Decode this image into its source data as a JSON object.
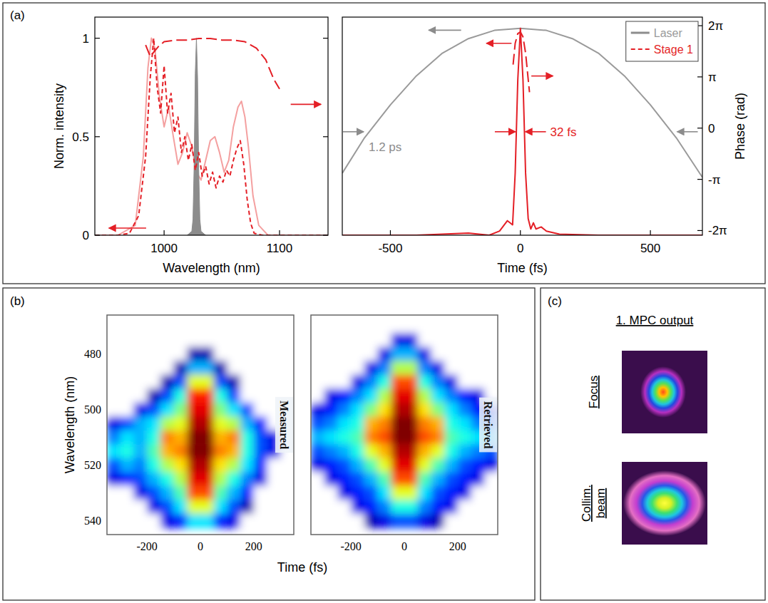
{
  "chart_data": [
    {
      "type": "line",
      "xlabel": "Wavelength (nm)",
      "ylabel": "Norm. intensity",
      "xlim": [
        940,
        1142
      ],
      "ylim": [
        0,
        1.107
      ],
      "y2lim": [
        -6.57,
        6.81
      ],
      "xticks": [
        1000,
        1100
      ],
      "yticks": [
        0,
        0.5,
        1
      ],
      "legend": "upper right",
      "series": [
        {
          "color": "#f4a0a0",
          "line_style": "solid",
          "x": [
            940,
            960,
            975,
            982,
            986,
            989,
            992,
            996,
            1000,
            1004,
            1008,
            1012,
            1016,
            1020,
            1024,
            1028,
            1032,
            1036,
            1040,
            1044,
            1048,
            1052,
            1056,
            1060,
            1064,
            1067,
            1070,
            1073,
            1077,
            1082,
            1090,
            1142
          ],
          "values": [
            0,
            0,
            0.05,
            0.4,
            0.85,
            1,
            0.95,
            0.7,
            0.55,
            0.65,
            0.5,
            0.36,
            0.42,
            0.52,
            0.45,
            0.32,
            0.28,
            0.38,
            0.48,
            0.5,
            0.42,
            0.32,
            0.38,
            0.55,
            0.65,
            0.68,
            0.6,
            0.45,
            0.2,
            0.05,
            0,
            0
          ]
        },
        {
          "name": "Laser",
          "color": "#8c8c8c",
          "type": "area",
          "x": [
            1020,
            1024,
            1025,
            1026,
            1027,
            1028,
            1029,
            1030,
            1031,
            1032,
            1036
          ],
          "values": [
            0,
            0.02,
            0.08,
            0.35,
            0.82,
            1,
            0.8,
            0.33,
            0.08,
            0.02,
            0
          ]
        },
        {
          "name": "Stage 1",
          "color": "#e41f26",
          "line_style": "dashed",
          "x": [
            940,
            960,
            970,
            978,
            984,
            988,
            991,
            994,
            997,
            1000,
            1003,
            1006,
            1009,
            1012,
            1015,
            1018,
            1021,
            1024,
            1027,
            1030,
            1033,
            1036,
            1039,
            1042,
            1045,
            1048,
            1051,
            1054,
            1057,
            1060,
            1063,
            1066,
            1069,
            1072,
            1075,
            1078,
            1085,
            1142
          ],
          "values": [
            0,
            0,
            0.01,
            0.1,
            0.4,
            0.8,
            1,
            0.75,
            0.62,
            0.86,
            0.62,
            0.72,
            0.52,
            0.6,
            0.42,
            0.5,
            0.38,
            0.46,
            0.33,
            0.42,
            0.3,
            0.35,
            0.26,
            0.32,
            0.24,
            0.3,
            0.27,
            0.33,
            0.3,
            0.38,
            0.44,
            0.48,
            0.36,
            0.18,
            0.06,
            0.01,
            0,
            0
          ]
        },
        {
          "color": "#e41f26",
          "line_style": "long-dashed",
          "axis": "y2",
          "x": [
            984,
            988,
            995,
            1000,
            1010,
            1020,
            1030,
            1040,
            1050,
            1060,
            1070,
            1080,
            1088,
            1095,
            1100
          ],
          "values": [
            5.1,
            4.4,
            5.0,
            5.3,
            5.4,
            5.4,
            5.5,
            5.5,
            5.4,
            5.4,
            5.3,
            4.9,
            4.2,
            3.0,
            2.4
          ]
        }
      ]
    },
    {
      "type": "line",
      "xlabel": "Time (fs)",
      "y2label": "Phase (rad)",
      "xlim": [
        -685,
        700
      ],
      "ylim": [
        0,
        1.054
      ],
      "y2lim": [
        -6.57,
        6.81
      ],
      "xticks": [
        -500,
        0,
        500
      ],
      "yticks": [],
      "y2ticks": [
        {
          "value": 6.283,
          "label": "2π"
        },
        {
          "value": 3.142,
          "label": "π"
        },
        0,
        {
          "value": -3.142,
          "label": "-π"
        },
        {
          "value": -6.283,
          "label": "-2π"
        }
      ],
      "series": [
        {
          "color": "#9a9a9a",
          "line_style": "solid",
          "x": [
            -685,
            -600,
            -500,
            -400,
            -300,
            -200,
            -100,
            0,
            100,
            200,
            300,
            400,
            500,
            600,
            700
          ],
          "values": [
            0.3,
            0.47,
            0.63,
            0.77,
            0.88,
            0.95,
            0.99,
            1,
            0.99,
            0.95,
            0.88,
            0.77,
            0.63,
            0.47,
            0.28
          ]
        },
        {
          "color": "#e41f26",
          "line_style": "solid",
          "x": [
            -685,
            -400,
            -300,
            -200,
            -120,
            -80,
            -50,
            -40,
            -30,
            -20,
            -10,
            0,
            10,
            20,
            30,
            40,
            50,
            60,
            80,
            100,
            150,
            300,
            500,
            700
          ],
          "values": [
            0,
            0,
            0.005,
            0.01,
            0,
            0.02,
            0.07,
            0.06,
            0.05,
            0.3,
            0.75,
            1,
            0.75,
            0.3,
            0.08,
            0.03,
            0.06,
            0.03,
            0.04,
            0.02,
            0.005,
            0,
            0,
            0
          ]
        },
        {
          "color": "#e41f26",
          "line_style": "long-dashed",
          "axis": "y2",
          "x": [
            -28,
            -20,
            -10,
            0,
            10,
            20,
            30,
            35
          ],
          "values": [
            3.9,
            5.2,
            5.8,
            5.9,
            5.6,
            4.6,
            3.0,
            2.2
          ]
        }
      ],
      "annotations": [
        {
          "text": "1.2 ps",
          "x": [
            -600,
            600
          ],
          "y": 0.5,
          "color": "#8c8c8c"
        },
        {
          "text": "32 fs",
          "x": [
            -16,
            16
          ],
          "y": 0.5,
          "color": "#e41f26"
        }
      ]
    },
    {
      "type": "heatmap",
      "title": "Measured",
      "xlabel": "Time (fs)",
      "ylabel": "Wavelength (nm)",
      "xlim": [
        -350,
        350
      ],
      "ylim": [
        466,
        545
      ],
      "xticks": [
        -200,
        0,
        200
      ],
      "yticks": [
        480,
        500,
        520,
        540
      ],
      "x": [
        -325,
        -275,
        -225,
        -175,
        -125,
        -75,
        -25,
        25,
        75,
        125,
        175,
        225,
        275,
        325
      ],
      "y": [
        470,
        475,
        480,
        485,
        490,
        495,
        500,
        505,
        510,
        515,
        520,
        525,
        530,
        535,
        540
      ],
      "cells": [
        [
          0,
          0,
          0,
          0,
          0,
          0,
          0,
          0,
          0,
          0,
          0,
          0,
          0,
          0
        ],
        [
          0,
          0,
          0,
          0,
          0,
          0,
          0,
          0,
          0,
          0,
          0,
          0,
          0,
          0
        ],
        [
          0,
          0,
          0,
          0,
          0,
          0,
          0.05,
          0.05,
          0,
          0,
          0,
          0,
          0,
          0
        ],
        [
          0,
          0,
          0,
          0,
          0,
          0.05,
          0.3,
          0.3,
          0.05,
          0,
          0,
          0,
          0,
          0
        ],
        [
          0,
          0,
          0,
          0,
          0.05,
          0.2,
          0.6,
          0.6,
          0.2,
          0.05,
          0,
          0,
          0,
          0
        ],
        [
          0,
          0,
          0,
          0.05,
          0.2,
          0.4,
          0.85,
          0.85,
          0.4,
          0.2,
          0,
          0,
          0,
          0
        ],
        [
          0,
          0,
          0.1,
          0.2,
          0.35,
          0.5,
          0.9,
          0.9,
          0.5,
          0.35,
          0.2,
          0,
          0,
          0
        ],
        [
          0.1,
          0.2,
          0.3,
          0.35,
          0.55,
          0.6,
          0.95,
          0.95,
          0.6,
          0.55,
          0.3,
          0.15,
          0,
          0
        ],
        [
          0.25,
          0.35,
          0.3,
          0.4,
          0.75,
          0.7,
          1,
          1,
          0.7,
          0.75,
          0.4,
          0.2,
          0.1,
          0
        ],
        [
          0.35,
          0.4,
          0.3,
          0.45,
          0.7,
          0.75,
          1,
          1,
          0.75,
          0.7,
          0.4,
          0.2,
          0.1,
          0
        ],
        [
          0.2,
          0.3,
          0.25,
          0.4,
          0.55,
          0.65,
          0.95,
          0.95,
          0.65,
          0.55,
          0.35,
          0.15,
          0,
          0
        ],
        [
          0.1,
          0.15,
          0.2,
          0.3,
          0.4,
          0.55,
          0.9,
          0.9,
          0.55,
          0.4,
          0.25,
          0.1,
          0,
          0
        ],
        [
          0,
          0,
          0.1,
          0.2,
          0.3,
          0.45,
          0.8,
          0.8,
          0.45,
          0.3,
          0.15,
          0,
          0,
          0
        ],
        [
          0,
          0,
          0,
          0.1,
          0.2,
          0.35,
          0.6,
          0.6,
          0.35,
          0.2,
          0.05,
          0,
          0,
          0
        ],
        [
          0,
          0,
          0,
          0,
          0.1,
          0.15,
          0.35,
          0.35,
          0.15,
          0.1,
          0,
          0,
          0,
          0
        ]
      ]
    },
    {
      "type": "heatmap",
      "title": "Retrieved",
      "tick_labels": "x",
      "xlim": [
        -350,
        350
      ],
      "ylim": [
        466,
        545
      ],
      "xticks": [
        -200,
        0,
        200
      ],
      "yticks": [
        480,
        500,
        520,
        540
      ],
      "x": [
        -325,
        -275,
        -225,
        -175,
        -125,
        -75,
        -25,
        25,
        75,
        125,
        175,
        225,
        275,
        325
      ],
      "y": [
        470,
        475,
        480,
        485,
        490,
        495,
        500,
        505,
        510,
        515,
        520,
        525,
        530,
        535,
        540
      ],
      "cells": [
        [
          0,
          0,
          0,
          0,
          0,
          0,
          0,
          0,
          0,
          0,
          0,
          0,
          0,
          0
        ],
        [
          0,
          0,
          0,
          0,
          0,
          0,
          0.1,
          0.1,
          0,
          0,
          0,
          0,
          0,
          0
        ],
        [
          0,
          0,
          0,
          0,
          0,
          0.1,
          0.3,
          0.3,
          0.1,
          0,
          0,
          0,
          0,
          0
        ],
        [
          0,
          0,
          0,
          0,
          0.1,
          0.25,
          0.55,
          0.55,
          0.25,
          0.1,
          0,
          0,
          0,
          0
        ],
        [
          0,
          0,
          0,
          0.1,
          0.25,
          0.4,
          0.8,
          0.8,
          0.4,
          0.25,
          0.1,
          0,
          0,
          0
        ],
        [
          0,
          0.1,
          0.15,
          0.25,
          0.35,
          0.55,
          0.9,
          0.9,
          0.55,
          0.35,
          0.25,
          0.15,
          0.1,
          0
        ],
        [
          0.1,
          0.15,
          0.25,
          0.35,
          0.5,
          0.65,
          0.95,
          0.95,
          0.65,
          0.5,
          0.35,
          0.25,
          0.15,
          0.1
        ],
        [
          0.2,
          0.25,
          0.35,
          0.4,
          0.7,
          0.75,
          1,
          1,
          0.75,
          0.7,
          0.4,
          0.35,
          0.25,
          0.2
        ],
        [
          0.3,
          0.35,
          0.4,
          0.45,
          0.75,
          0.8,
          1,
          1,
          0.8,
          0.75,
          0.45,
          0.4,
          0.35,
          0.3
        ],
        [
          0.2,
          0.25,
          0.3,
          0.4,
          0.6,
          0.7,
          0.95,
          0.95,
          0.7,
          0.6,
          0.4,
          0.3,
          0.25,
          0.2
        ],
        [
          0.1,
          0.15,
          0.2,
          0.3,
          0.45,
          0.6,
          0.9,
          0.9,
          0.6,
          0.45,
          0.3,
          0.2,
          0.15,
          0.1
        ],
        [
          0,
          0.1,
          0.15,
          0.2,
          0.3,
          0.45,
          0.8,
          0.8,
          0.45,
          0.3,
          0.2,
          0.15,
          0.1,
          0
        ],
        [
          0,
          0,
          0.1,
          0.15,
          0.2,
          0.35,
          0.6,
          0.6,
          0.35,
          0.2,
          0.15,
          0.1,
          0,
          0
        ],
        [
          0,
          0,
          0,
          0.1,
          0.15,
          0.25,
          0.4,
          0.4,
          0.25,
          0.15,
          0.1,
          0,
          0,
          0
        ],
        [
          0,
          0,
          0,
          0,
          0.05,
          0.1,
          0.2,
          0.2,
          0.1,
          0.05,
          0,
          0,
          0,
          0
        ]
      ]
    }
  ],
  "panels": {
    "a": "(a)",
    "b": "(b)",
    "c": "(c)"
  },
  "beam_profiles": {
    "title": "1. MPC output",
    "labels": [
      "Focus",
      "Collim. beam"
    ]
  }
}
